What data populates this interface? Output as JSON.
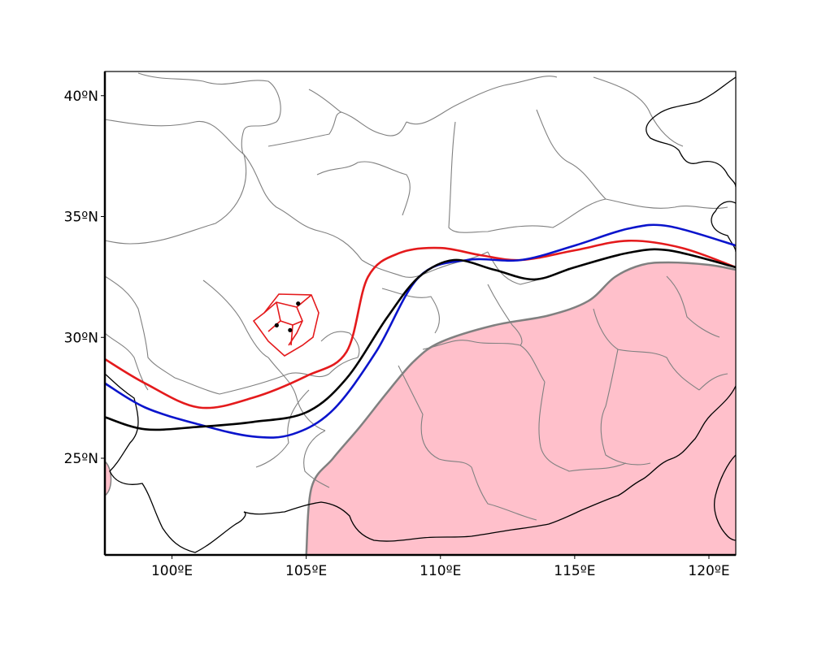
{
  "map": {
    "lon_range": [
      97.5,
      121.0
    ],
    "lat_range": [
      21.0,
      41.0
    ],
    "x_ticks": [
      {
        "value": 100,
        "label": "100ºE"
      },
      {
        "value": 105,
        "label": "105ºE"
      },
      {
        "value": 110,
        "label": "110ºE"
      },
      {
        "value": 115,
        "label": "115ºE"
      },
      {
        "value": 120,
        "label": "120ºE"
      }
    ],
    "y_ticks": [
      {
        "value": 25,
        "label": "25ºN"
      },
      {
        "value": 30,
        "label": "30ºN"
      },
      {
        "value": 35,
        "label": "35ºN"
      },
      {
        "value": 40,
        "label": "40ºN"
      }
    ],
    "colors": {
      "shaded_region": "#ffc0cb",
      "red_line": "#e41a1c",
      "blue_line": "#0a14cc",
      "black_line": "#000000",
      "boundaries": "#808080",
      "coastline": "#000000"
    },
    "lines": {
      "red": [
        [
          97.5,
          29.1
        ],
        [
          99,
          28.1
        ],
        [
          101,
          27.1
        ],
        [
          103,
          27.5
        ],
        [
          105,
          28.4
        ],
        [
          106.5,
          29.4
        ],
        [
          107.3,
          32.5
        ],
        [
          108.5,
          33.5
        ],
        [
          110,
          33.7
        ],
        [
          111.5,
          33.4
        ],
        [
          113,
          33.2
        ],
        [
          115,
          33.6
        ],
        [
          117,
          34.0
        ],
        [
          119,
          33.7
        ],
        [
          121,
          32.9
        ]
      ],
      "blue": [
        [
          97.5,
          28.1
        ],
        [
          99,
          27.1
        ],
        [
          101,
          26.4
        ],
        [
          103,
          25.9
        ],
        [
          104.5,
          26.0
        ],
        [
          106,
          27.0
        ],
        [
          107.6,
          29.4
        ],
        [
          109.2,
          32.5
        ],
        [
          111,
          33.2
        ],
        [
          113,
          33.2
        ],
        [
          115,
          33.8
        ],
        [
          117,
          34.5
        ],
        [
          118.5,
          34.6
        ],
        [
          121,
          33.8
        ]
      ],
      "black": [
        [
          97.5,
          26.7
        ],
        [
          99,
          26.2
        ],
        [
          101,
          26.3
        ],
        [
          103,
          26.5
        ],
        [
          105,
          26.9
        ],
        [
          106.5,
          28.3
        ],
        [
          108,
          30.8
        ],
        [
          109.2,
          32.5
        ],
        [
          110.5,
          33.2
        ],
        [
          112,
          32.8
        ],
        [
          113.5,
          32.4
        ],
        [
          115,
          32.9
        ],
        [
          117,
          33.5
        ],
        [
          118.5,
          33.6
        ],
        [
          121,
          32.9
        ]
      ],
      "shaded_boundary": [
        [
          105.0,
          21.0
        ],
        [
          105.2,
          23.8
        ],
        [
          106,
          25.0
        ],
        [
          107,
          26.3
        ],
        [
          108,
          27.7
        ],
        [
          109,
          29.0
        ],
        [
          110,
          29.8
        ],
        [
          112,
          30.5
        ],
        [
          114,
          30.9
        ],
        [
          115.5,
          31.5
        ],
        [
          116.5,
          32.5
        ],
        [
          117.5,
          33.0
        ],
        [
          118.5,
          33.1
        ],
        [
          120,
          33.0
        ],
        [
          121,
          32.8
        ]
      ]
    },
    "red_outline": [
      [
        104.0,
        31.5
      ],
      [
        104.0,
        31.5
      ]
    ],
    "station_points": [
      [
        104.7,
        31.4
      ],
      [
        103.9,
        30.5
      ],
      [
        104.4,
        30.3
      ]
    ]
  }
}
